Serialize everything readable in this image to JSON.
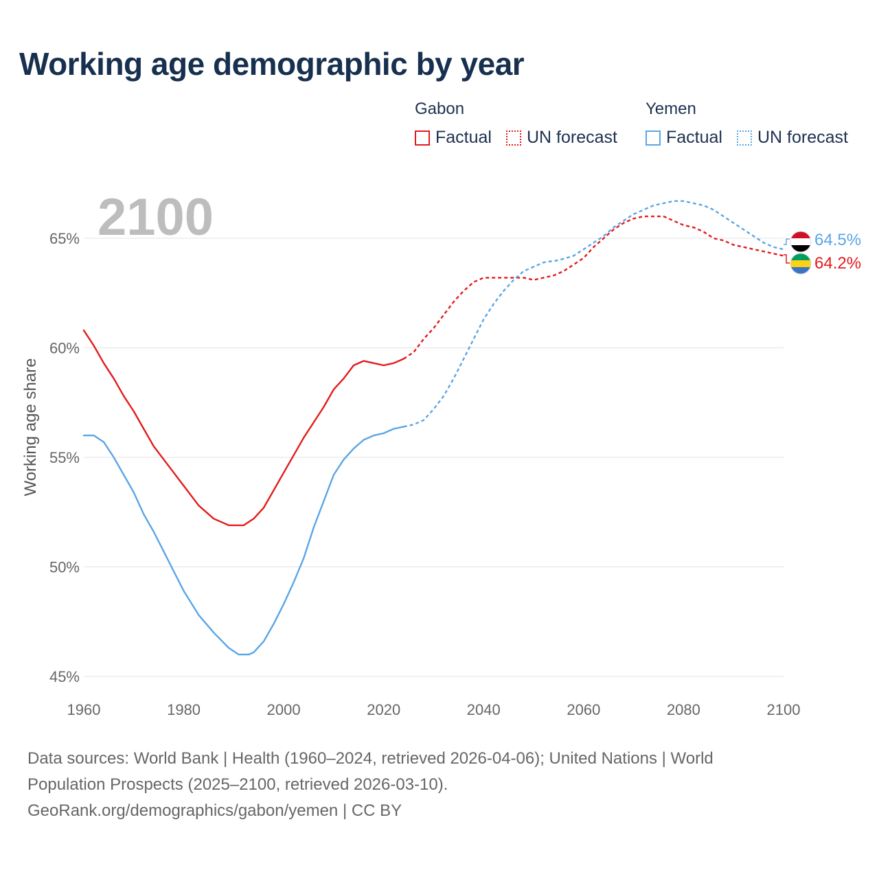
{
  "title": "Working age demographic by year",
  "legend": {
    "groups": [
      {
        "name": "Gabon",
        "factual_label": "Factual",
        "forecast_label": "UN forecast",
        "color": "#e31a1c"
      },
      {
        "name": "Yemen",
        "factual_label": "Factual",
        "forecast_label": "UN forecast",
        "color": "#5aa5e6"
      }
    ]
  },
  "year_overlay": "2100",
  "chart_data": {
    "type": "line",
    "title": "Working age demographic by year",
    "xlabel": "",
    "ylabel": "Working age share",
    "xlim": [
      1960,
      2100
    ],
    "ylim": [
      45,
      66.5
    ],
    "x_ticks": [
      1960,
      1980,
      2000,
      2020,
      2040,
      2060,
      2080,
      2100
    ],
    "x_tick_labels": [
      "1960",
      "1980",
      "2000",
      "2020",
      "2040",
      "2060",
      "2080",
      "2100"
    ],
    "y_ticks": [
      45,
      50,
      55,
      60,
      65
    ],
    "y_tick_labels": [
      "45%",
      "50%",
      "55%",
      "60%",
      "65%"
    ],
    "grid": true,
    "factual_until": 2024,
    "series": [
      {
        "name": "Gabon",
        "color": "#e31a1c",
        "end_label": "64.2%",
        "x": [
          1960,
          1962,
          1964,
          1966,
          1968,
          1970,
          1972,
          1974,
          1976,
          1978,
          1980,
          1983,
          1986,
          1989,
          1991,
          1992,
          1994,
          1996,
          1998,
          2000,
          2002,
          2004,
          2006,
          2008,
          2010,
          2012,
          2014,
          2016,
          2018,
          2020,
          2022,
          2024,
          2026,
          2028,
          2030,
          2032,
          2034,
          2036,
          2038,
          2040,
          2042,
          2045,
          2048,
          2050,
          2052,
          2054,
          2056,
          2058,
          2060,
          2062,
          2064,
          2066,
          2068,
          2070,
          2072,
          2074,
          2076,
          2078,
          2080,
          2082,
          2084,
          2086,
          2088,
          2090,
          2092,
          2094,
          2096,
          2098,
          2100
        ],
        "values": [
          60.8,
          60.1,
          59.3,
          58.6,
          57.8,
          57.1,
          56.3,
          55.5,
          54.9,
          54.3,
          53.7,
          52.8,
          52.2,
          51.9,
          51.9,
          51.9,
          52.2,
          52.7,
          53.5,
          54.3,
          55.1,
          55.9,
          56.6,
          57.3,
          58.1,
          58.6,
          59.2,
          59.4,
          59.3,
          59.2,
          59.3,
          59.5,
          59.8,
          60.4,
          60.9,
          61.5,
          62.1,
          62.6,
          63.0,
          63.2,
          63.2,
          63.2,
          63.2,
          63.1,
          63.2,
          63.3,
          63.5,
          63.8,
          64.1,
          64.6,
          65.0,
          65.4,
          65.7,
          65.9,
          66.0,
          66.0,
          66.0,
          65.8,
          65.6,
          65.5,
          65.3,
          65.0,
          64.9,
          64.7,
          64.6,
          64.5,
          64.4,
          64.3,
          64.2
        ]
      },
      {
        "name": "Yemen",
        "color": "#5aa5e6",
        "end_label": "64.5%",
        "x": [
          1960,
          1962,
          1964,
          1966,
          1968,
          1970,
          1972,
          1974,
          1976,
          1978,
          1980,
          1983,
          1986,
          1989,
          1991,
          1992,
          1993,
          1994,
          1996,
          1998,
          2000,
          2002,
          2004,
          2006,
          2008,
          2010,
          2012,
          2014,
          2016,
          2018,
          2020,
          2022,
          2024,
          2026,
          2028,
          2030,
          2032,
          2034,
          2036,
          2038,
          2040,
          2042,
          2044,
          2046,
          2048,
          2050,
          2052,
          2055,
          2058,
          2060,
          2062,
          2064,
          2066,
          2068,
          2070,
          2072,
          2074,
          2076,
          2078,
          2080,
          2082,
          2084,
          2086,
          2088,
          2090,
          2092,
          2094,
          2096,
          2098,
          2100
        ],
        "values": [
          56.0,
          56.0,
          55.7,
          55.0,
          54.2,
          53.4,
          52.4,
          51.6,
          50.7,
          49.8,
          48.9,
          47.8,
          47.0,
          46.3,
          46.0,
          46.0,
          46.0,
          46.1,
          46.6,
          47.4,
          48.3,
          49.3,
          50.4,
          51.8,
          53.0,
          54.2,
          54.9,
          55.4,
          55.8,
          56.0,
          56.1,
          56.3,
          56.4,
          56.5,
          56.7,
          57.2,
          57.8,
          58.6,
          59.5,
          60.4,
          61.3,
          62.0,
          62.6,
          63.1,
          63.5,
          63.7,
          63.9,
          64.0,
          64.2,
          64.5,
          64.8,
          65.1,
          65.5,
          65.8,
          66.1,
          66.3,
          66.5,
          66.6,
          66.7,
          66.7,
          66.6,
          66.5,
          66.3,
          66.0,
          65.7,
          65.4,
          65.1,
          64.8,
          64.6,
          64.5
        ]
      }
    ]
  },
  "source": {
    "line1": "Data sources: World Bank | Health (1960–2024, retrieved 2026-04-06); United Nations | World",
    "line2": "Population Prospects (2025–2100, retrieved 2026-03-10).",
    "line3": "GeoRank.org/demographics/gabon/yemen | CC BY"
  }
}
